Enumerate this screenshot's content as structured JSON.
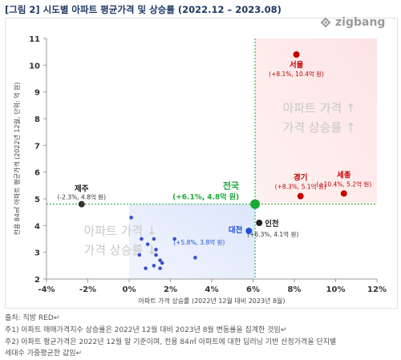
{
  "title": "[그림 2] 시도별 아파트 평균가격 및 상승률 (2022.12 – 2023.08)",
  "logo": {
    "text": "zigbang",
    "icon": "zigbang-logo-icon"
  },
  "chart_data": {
    "type": "scatter",
    "xlabel": "아파트 가격 상승률 (2022년 12월 대비 2023년 8월)",
    "ylabel": "전용 84㎡ 아파트 평균가격 (2022년 12월, 단위: 억 원)",
    "xlim": [
      -4,
      12
    ],
    "ylim": [
      2,
      11
    ],
    "xticks": [
      -4,
      -2,
      0,
      2,
      4,
      6,
      8,
      10,
      12
    ],
    "xtick_labels": [
      "-4%",
      "-2%",
      "0%",
      "2%",
      "4%",
      "6%",
      "8%",
      "10%",
      "12%"
    ],
    "yticks": [
      2,
      3,
      4,
      5,
      6,
      7,
      8,
      9,
      10,
      11
    ],
    "reference_lines": {
      "x": 6.1,
      "y": 4.8
    },
    "quadrant_labels": {
      "high": [
        "아파트 가격 ↑",
        "가격 상승률 ↑"
      ],
      "low": [
        "아파트 가격 ↓",
        "가격 상승률 ↓"
      ]
    },
    "labeled_points": [
      {
        "name": "서울",
        "x": 8.1,
        "y": 10.4,
        "detail": "(+8.1%, 10.4억 원)",
        "color": "#c00000"
      },
      {
        "name": "경기",
        "x": 8.3,
        "y": 5.1,
        "detail": "(+8.3%, 5.1억 원)",
        "color": "#c00000"
      },
      {
        "name": "세종",
        "x": 10.4,
        "y": 5.2,
        "detail": "(+10.4%, 5.2억 원)",
        "color": "#c00000"
      },
      {
        "name": "전국",
        "x": 6.1,
        "y": 4.8,
        "detail": "(+6.1%, 4.8억 원)",
        "color": "#18a935"
      },
      {
        "name": "인천",
        "x": 6.3,
        "y": 4.1,
        "detail": "(+6.3%, 4.1억 원)",
        "color": "#222222"
      },
      {
        "name": "대전",
        "x": 5.8,
        "y": 3.8,
        "detail": "(+5.8%, 3.8억 원)",
        "color": "#1f4fd8"
      },
      {
        "name": "제주",
        "x": -2.3,
        "y": 4.8,
        "detail": "(-2.3%, 4.8억 원)",
        "color": "#333333"
      }
    ],
    "other_points": [
      {
        "x": 0.1,
        "y": 4.3
      },
      {
        "x": 0.6,
        "y": 3.5
      },
      {
        "x": 1.2,
        "y": 3.5
      },
      {
        "x": 2.2,
        "y": 3.5
      },
      {
        "x": 0.9,
        "y": 3.3
      },
      {
        "x": 1.3,
        "y": 3.1
      },
      {
        "x": 0.5,
        "y": 2.9
      },
      {
        "x": 1.3,
        "y": 2.9
      },
      {
        "x": 3.2,
        "y": 2.8
      },
      {
        "x": 1.5,
        "y": 2.7
      },
      {
        "x": 1.6,
        "y": 2.6
      },
      {
        "x": 1.2,
        "y": 2.5
      },
      {
        "x": 0.8,
        "y": 2.4
      },
      {
        "x": 1.5,
        "y": 2.4
      }
    ],
    "colors": {
      "high_quadrant": "#fde4e4",
      "low_quadrant": "#dde6fb",
      "reference_line": "#18a935",
      "other_points": "#3c50c8",
      "quadrant_text": "#c8c8c8"
    }
  },
  "notes": [
    "출처: 직방 RED↵",
    "주1) 아파트 매매가격지수 상승률은 2022년 12월 대비 2023년 8월 변동률을 집계한 것임↵",
    "주2) 아파트 평균가격은 2022년 12월 말 기준이며, 전용 84㎡ 아파트에 대한 딥러닝 기반 산정가격을 단지별",
    "세대수 가중평균한 값임↵"
  ]
}
